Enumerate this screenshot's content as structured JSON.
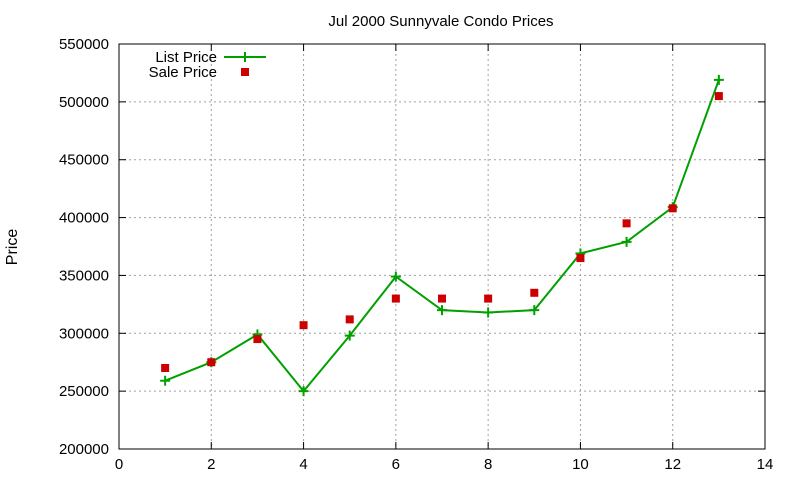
{
  "chart_data": {
    "type": "line",
    "title": "Jul 2000 Sunnyvale Condo Prices",
    "xlabel": "",
    "ylabel": "Price",
    "xlim": [
      0,
      14
    ],
    "ylim": [
      200000,
      550000
    ],
    "xticks": [
      0,
      2,
      4,
      6,
      8,
      10,
      12,
      14
    ],
    "yticks": [
      200000,
      250000,
      300000,
      350000,
      400000,
      450000,
      500000,
      550000
    ],
    "grid": true,
    "legend_position": "top-left",
    "series": [
      {
        "name": "List Price",
        "style": "line-with-plus-markers",
        "color": "#00a000",
        "x": [
          1,
          2,
          3,
          4,
          5,
          6,
          7,
          8,
          9,
          10,
          11,
          12,
          13
        ],
        "y": [
          259000,
          275000,
          299000,
          250000,
          298000,
          349000,
          320000,
          318000,
          320000,
          369000,
          379000,
          409000,
          519000
        ]
      },
      {
        "name": "Sale Price",
        "style": "square-markers",
        "color": "#cc0000",
        "x": [
          1,
          2,
          3,
          4,
          5,
          6,
          7,
          8,
          9,
          10,
          11,
          12,
          13
        ],
        "y": [
          270000,
          275000,
          295000,
          307000,
          312000,
          330000,
          330000,
          330000,
          335000,
          365000,
          395000,
          408000,
          505000
        ]
      }
    ]
  }
}
